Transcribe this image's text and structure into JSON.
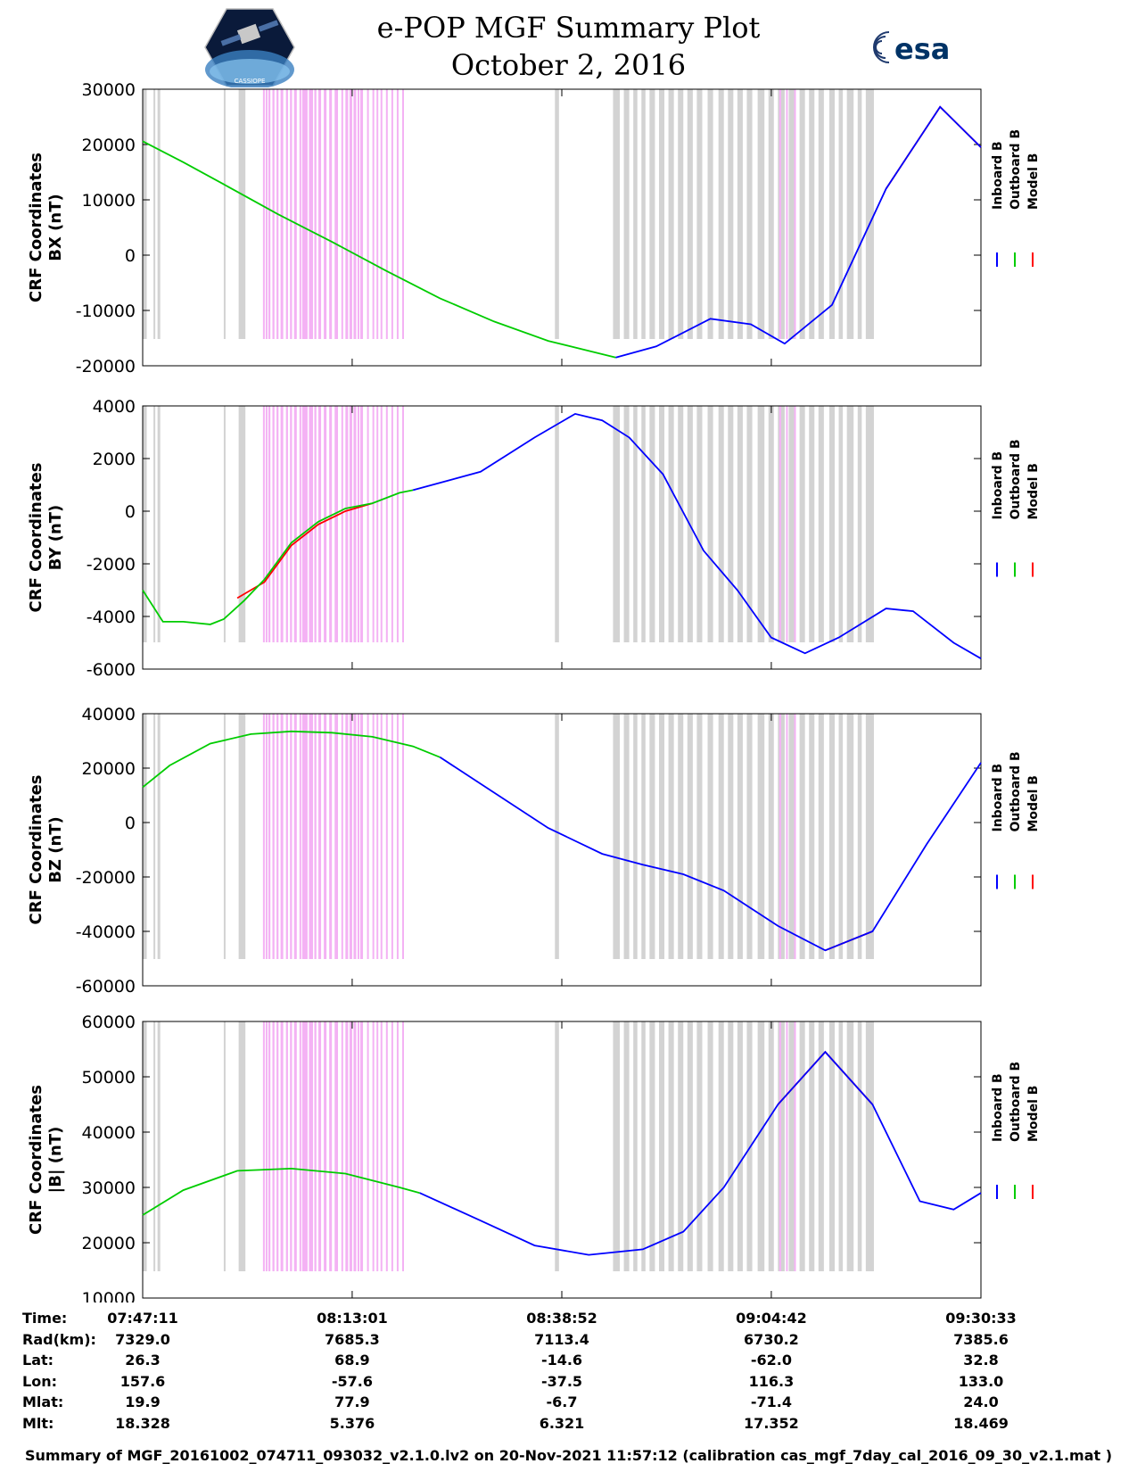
{
  "title": {
    "line1": "e-POP MGF Summary Plot",
    "line2": "October 2, 2016"
  },
  "logos": {
    "left": "CASSIOPE",
    "right": "esa"
  },
  "legend": {
    "entries": [
      {
        "name": "Inboard B",
        "color": "#0000ff"
      },
      {
        "name": "Outboard B",
        "color": "#00cc00"
      },
      {
        "name": "Model B",
        "color": "#ff0000"
      }
    ]
  },
  "colors": {
    "gray_band": "#d3d3d3",
    "magenta_band": "#f4b2f4",
    "inboard": "#0000ff",
    "outboard": "#00cc00",
    "model": "#ff0000"
  },
  "chart_data": [
    {
      "type": "line",
      "ylabel1": "CRF Coordinates",
      "ylabel2": "BX (nT)",
      "ylim": [
        -20000,
        30000
      ],
      "yticks": [
        -20000,
        -10000,
        0,
        10000,
        20000,
        30000
      ],
      "xlim": [
        0,
        6202
      ],
      "series": [
        {
          "name": "Outboard B",
          "x": [
            0,
            150,
            300,
            600,
            1000,
            1400,
            1800,
            2200,
            2600,
            3000,
            3500
          ],
          "values": [
            20600,
            18700,
            16800,
            12800,
            7400,
            2400,
            -2800,
            -7800,
            -12000,
            -15500,
            -18500
          ]
        },
        {
          "name": "Inboard B",
          "x": [
            3500,
            3800,
            4200,
            4500,
            4750,
            5100,
            5500,
            5900,
            6202
          ],
          "values": [
            -18500,
            -16500,
            -11500,
            -12500,
            -16000,
            -9000,
            12000,
            26800,
            19500
          ]
        },
        {
          "name": "Model B",
          "x": [
            5500,
            5900,
            6202
          ],
          "values": [
            12000,
            26800,
            19500
          ]
        }
      ]
    },
    {
      "type": "line",
      "ylabel1": "CRF Coordinates",
      "ylabel2": "BY (nT)",
      "ylim": [
        -6000,
        4000
      ],
      "yticks": [
        -6000,
        -4000,
        -2000,
        0,
        2000,
        4000
      ],
      "xlim": [
        0,
        6202
      ],
      "series": [
        {
          "name": "Outboard B",
          "x": [
            0,
            150,
            300,
            500,
            600,
            750,
            900,
            1100,
            1300,
            1500,
            1700,
            1900,
            2000
          ],
          "values": [
            -3000,
            -4200,
            -4200,
            -4300,
            -4100,
            -3400,
            -2600,
            -1200,
            -400,
            100,
            300,
            700,
            800
          ]
        },
        {
          "name": "Inboard B",
          "x": [
            2000,
            2500,
            2900,
            3200,
            3400,
            3600,
            3850,
            4150,
            4400,
            4650,
            4900,
            5150,
            5500,
            5700,
            6000,
            6202
          ],
          "values": [
            800,
            1500,
            2800,
            3700,
            3450,
            2800,
            1400,
            -1500,
            -3000,
            -4800,
            -5400,
            -4800,
            -3700,
            -3800,
            -5000,
            -5600
          ]
        },
        {
          "name": "Model B",
          "x": [
            700,
            900,
            1100,
            1300,
            1500,
            1700
          ],
          "values": [
            -3300,
            -2700,
            -1300,
            -500,
            0,
            300
          ]
        }
      ]
    },
    {
      "type": "line",
      "ylabel1": "CRF Coordinates",
      "ylabel2": "BZ (nT)",
      "ylim": [
        -60000,
        40000
      ],
      "yticks": [
        -60000,
        -40000,
        -20000,
        0,
        20000,
        40000
      ],
      "xlim": [
        0,
        6202
      ],
      "series": [
        {
          "name": "Outboard B",
          "x": [
            0,
            200,
            500,
            800,
            1100,
            1400,
            1700,
            2000,
            2200
          ],
          "values": [
            13000,
            21000,
            29000,
            32500,
            33500,
            33000,
            31500,
            28000,
            24000
          ]
        },
        {
          "name": "Inboard B",
          "x": [
            2200,
            2600,
            3000,
            3400,
            3700,
            4000,
            4300,
            4700,
            5050,
            5400,
            5800,
            6202
          ],
          "values": [
            24000,
            11000,
            -2000,
            -11500,
            -15500,
            -19000,
            -25000,
            -38000,
            -47000,
            -40000,
            -8000,
            22000
          ]
        },
        {
          "name": "Model B",
          "x": [
            5050,
            5400
          ],
          "values": [
            -47000,
            -40000
          ]
        }
      ]
    },
    {
      "type": "line",
      "ylabel1": "CRF Coordinates",
      "ylabel2": "|B| (nT)",
      "ylim": [
        10000,
        60000
      ],
      "yticks": [
        10000,
        20000,
        30000,
        40000,
        50000,
        60000
      ],
      "xlim": [
        0,
        6202
      ],
      "series": [
        {
          "name": "Outboard B",
          "x": [
            0,
            300,
            700,
            1100,
            1500,
            1900,
            2050
          ],
          "values": [
            25000,
            29500,
            33000,
            33400,
            32500,
            30000,
            29000
          ]
        },
        {
          "name": "Inboard B",
          "x": [
            2050,
            2500,
            2900,
            3300,
            3700,
            4000,
            4300,
            4700,
            5050,
            5400,
            5750,
            6000,
            6202
          ],
          "values": [
            29000,
            24000,
            19500,
            17800,
            18800,
            22000,
            30000,
            45000,
            54500,
            45000,
            27500,
            26000,
            29000
          ]
        },
        {
          "name": "Model B",
          "x": [
            4700,
            5050,
            5400
          ],
          "values": [
            45000,
            54500,
            45000
          ]
        }
      ]
    }
  ],
  "bands": {
    "gray": [
      [
        0,
        30
      ],
      [
        80,
        90
      ],
      [
        110,
        130
      ],
      [
        600,
        610
      ],
      [
        710,
        760
      ],
      [
        1300,
        1310
      ],
      [
        3050,
        3080
      ],
      [
        3480,
        3530
      ],
      [
        3560,
        3600
      ],
      [
        3630,
        3660
      ],
      [
        3690,
        3720
      ],
      [
        3750,
        3790
      ],
      [
        3820,
        3860
      ],
      [
        3890,
        3930
      ],
      [
        3960,
        4000
      ],
      [
        4030,
        4070
      ],
      [
        4100,
        4140
      ],
      [
        4180,
        4220
      ],
      [
        4260,
        4300
      ],
      [
        4330,
        4370
      ],
      [
        4400,
        4440
      ],
      [
        4470,
        4510
      ],
      [
        4550,
        4600
      ],
      [
        4630,
        4670
      ],
      [
        4700,
        4750
      ],
      [
        4780,
        4820
      ],
      [
        4860,
        4900
      ],
      [
        4930,
        4970
      ],
      [
        5000,
        5040
      ],
      [
        5080,
        5120
      ],
      [
        5150,
        5180
      ],
      [
        5210,
        5260
      ],
      [
        5290,
        5320
      ],
      [
        5350,
        5410
      ]
    ],
    "magenta": [
      [
        890,
        900
      ],
      [
        910,
        920
      ],
      [
        930,
        945
      ],
      [
        960,
        975
      ],
      [
        990,
        1005
      ],
      [
        1020,
        1040
      ],
      [
        1060,
        1075
      ],
      [
        1090,
        1105
      ],
      [
        1120,
        1140
      ],
      [
        1160,
        1170
      ],
      [
        1180,
        1220
      ],
      [
        1230,
        1260
      ],
      [
        1270,
        1285
      ],
      [
        1300,
        1320
      ],
      [
        1340,
        1360
      ],
      [
        1380,
        1400
      ],
      [
        1420,
        1445
      ],
      [
        1470,
        1480
      ],
      [
        1500,
        1520
      ],
      [
        1530,
        1550
      ],
      [
        1560,
        1580
      ],
      [
        1590,
        1600
      ],
      [
        1610,
        1630
      ],
      [
        1660,
        1670
      ],
      [
        1700,
        1710
      ],
      [
        1730,
        1740
      ],
      [
        1760,
        1770
      ],
      [
        1800,
        1810
      ],
      [
        1840,
        1850
      ],
      [
        1880,
        1890
      ],
      [
        1920,
        1930
      ],
      [
        4710,
        4720
      ],
      [
        4760,
        4770
      ],
      [
        4820,
        4830
      ]
    ]
  },
  "stats": {
    "labels": [
      "Time:",
      "Rad(km):",
      "Lat:",
      "Lon:",
      "Mlat:",
      "Mlt:"
    ],
    "columns": [
      {
        "x": 0,
        "values": [
          "07:47:11",
          "7329.0",
          "26.3",
          "157.6",
          "19.9",
          "18.328"
        ]
      },
      {
        "x": 1550,
        "values": [
          "08:13:01",
          "7685.3",
          "68.9",
          "-57.6",
          "77.9",
          "5.376"
        ]
      },
      {
        "x": 3101,
        "values": [
          "08:38:52",
          "7113.4",
          "-14.6",
          "-37.5",
          "-6.7",
          "6.321"
        ]
      },
      {
        "x": 4651,
        "values": [
          "09:04:42",
          "6730.2",
          "-62.0",
          "116.3",
          "-71.4",
          "17.352"
        ]
      },
      {
        "x": 6202,
        "values": [
          "09:30:33",
          "7385.6",
          "32.8",
          "133.0",
          "24.0",
          "18.469"
        ]
      }
    ]
  },
  "footer": "Summary of MGF_20161002_074711_093032_v2.1.0.lv2 on 20-Nov-2021 11:57:12 (calibration cas_mgf_7day_cal_2016_09_30_v2.1.mat )"
}
